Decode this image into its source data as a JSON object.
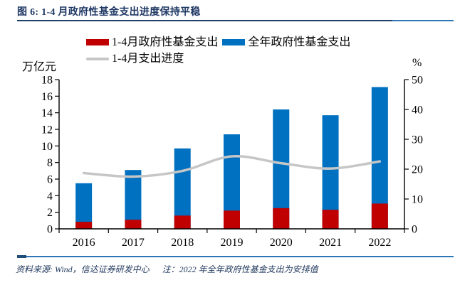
{
  "figure": {
    "title": "图 6: 1-4 月政府性基金支出进度保持平稳",
    "source": "资料来源: Wind，信达证券研发中心",
    "note": "注：2022 年全年政府性基金支出为安排值"
  },
  "palette": {
    "title_navy": "#1f3864",
    "rule_dark": "#1e3f66",
    "rule_blue": "#2e75b6",
    "axis_black": "#000000"
  },
  "chart_data": {
    "type": "bar",
    "bar_mode": "overlap",
    "grid": false,
    "legend_position": "top",
    "categories": [
      "2016",
      "2017",
      "2018",
      "2019",
      "2020",
      "2021",
      "2022"
    ],
    "series": [
      {
        "name": "1-4月政府性基金支出",
        "type": "bar",
        "axis": "left",
        "color": "#c00000",
        "values": [
          0.85,
          1.1,
          1.6,
          2.2,
          2.5,
          2.3,
          3.05
        ]
      },
      {
        "name": "全年政府性基金支出",
        "type": "bar",
        "axis": "left",
        "color": "#0070c0",
        "values": [
          5.5,
          7.1,
          9.7,
          11.4,
          14.4,
          13.7,
          17.1
        ]
      },
      {
        "name": "1-4月支出进度",
        "type": "line",
        "axis": "right",
        "color": "#c6c6c6",
        "values": [
          18.7,
          17.5,
          19.4,
          24.3,
          22.0,
          20.2,
          22.6
        ]
      }
    ],
    "left_axis": {
      "label": "万亿元",
      "min": 0,
      "max": 18,
      "step": 2
    },
    "right_axis": {
      "label": "%",
      "min": 0,
      "max": 50,
      "step": 10
    }
  }
}
